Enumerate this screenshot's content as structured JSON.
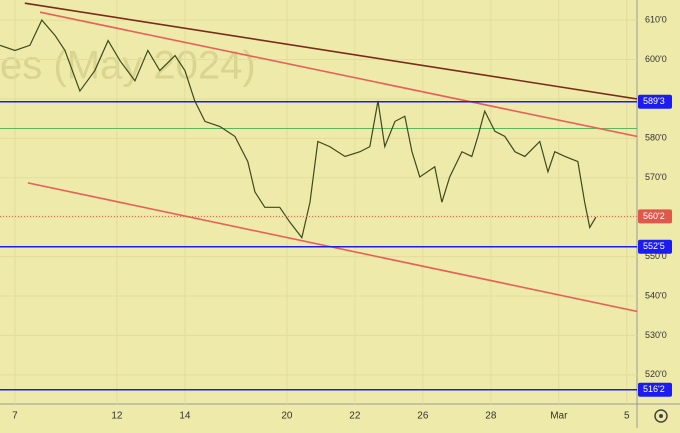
{
  "chart_data": {
    "type": "line",
    "watermark": "es (May 2024)",
    "x": [
      -0.44,
      0,
      0.44,
      0.79,
      1.18,
      1.47,
      1.91,
      2.35,
      2.74,
      3.09,
      3.53,
      3.91,
      4.26,
      4.71,
      5.0,
      5.29,
      5.59,
      6.03,
      6.47,
      6.85,
      7.06,
      7.35,
      7.79,
      8.09,
      8.44,
      8.68,
      8.91,
      9.26,
      9.71,
      10.15,
      10.44,
      10.68,
      10.88,
      11.18,
      11.47,
      11.68,
      11.91,
      12.35,
      12.56,
      12.79,
      13.15,
      13.44,
      13.62,
      13.82,
      14.12,
      14.41,
      14.71,
      15.0,
      15.44,
      15.68,
      15.88,
      16.18,
      16.56,
      16.76,
      16.91,
      17.09
    ],
    "series": [
      {
        "color": "#3d4a1e",
        "values": [
          603.6,
          602.3,
          603.6,
          610.0,
          606.1,
          602.3,
          592.0,
          597.2,
          604.8,
          599.7,
          594.6,
          602.3,
          597.2,
          601.0,
          597.2,
          589.5,
          584.3,
          583.0,
          580.5,
          574.1,
          566.4,
          562.5,
          562.5,
          558.7,
          554.8,
          563.8,
          579.2,
          577.9,
          575.4,
          576.6,
          577.9,
          589.5,
          577.9,
          584.3,
          585.6,
          576.6,
          570.2,
          572.8,
          563.8,
          570.2,
          576.6,
          575.4,
          580.5,
          586.9,
          581.8,
          580.5,
          576.6,
          575.4,
          579.2,
          571.5,
          576.6,
          575.4,
          574.1,
          563.8,
          557.4,
          560.0
        ]
      }
    ],
    "xlim": [
      -0.44,
      18.3
    ],
    "xticks": [
      {
        "value": 0,
        "label": "7"
      },
      {
        "value": 3,
        "label": "12"
      },
      {
        "value": 5,
        "label": "14"
      },
      {
        "value": 8,
        "label": "20"
      },
      {
        "value": 10,
        "label": "22"
      },
      {
        "value": 12,
        "label": "26"
      },
      {
        "value": 14,
        "label": "28"
      },
      {
        "value": 16,
        "label": "Mar"
      },
      {
        "value": 18,
        "label": "5"
      }
    ],
    "ylim": [
      512.6,
      615.1
    ],
    "yticks": [
      {
        "value": 610,
        "label": "610'0"
      },
      {
        "value": 600,
        "label": "600'0"
      },
      {
        "value": 590,
        "label": "590'0"
      },
      {
        "value": 580,
        "label": "580'0"
      },
      {
        "value": 570,
        "label": "570'0"
      },
      {
        "value": 560,
        "label": "560'0"
      },
      {
        "value": 550,
        "label": "550'0"
      },
      {
        "value": 540,
        "label": "540'0"
      },
      {
        "value": 530,
        "label": "530'0"
      },
      {
        "value": 520,
        "label": "520'0"
      }
    ],
    "grid": true,
    "levels": [
      {
        "value": 589.3,
        "label": "589'3",
        "color": "#1c1cf0"
      },
      {
        "value": 552.5,
        "label": "552'5",
        "color": "#1c1cf0"
      },
      {
        "value": 516.2,
        "label": "516'2",
        "color": "#1c1cf0"
      },
      {
        "value": 560.2,
        "label": "560'2",
        "color": "#e0584a"
      }
    ],
    "hlines": [
      {
        "value": 582.5,
        "color": "#5cb85c"
      }
    ],
    "trendlines": [
      {
        "x": [
          0.29,
          18.3
        ],
        "values": [
          614.3,
          590.0
        ],
        "color": "#7a2b1c"
      },
      {
        "x": [
          0.74,
          18.3
        ],
        "values": [
          612.0,
          580.5
        ],
        "color": "#e8605a"
      },
      {
        "x": [
          0.38,
          18.3
        ],
        "values": [
          568.7,
          536.1
        ],
        "color": "#e8605a"
      }
    ]
  }
}
